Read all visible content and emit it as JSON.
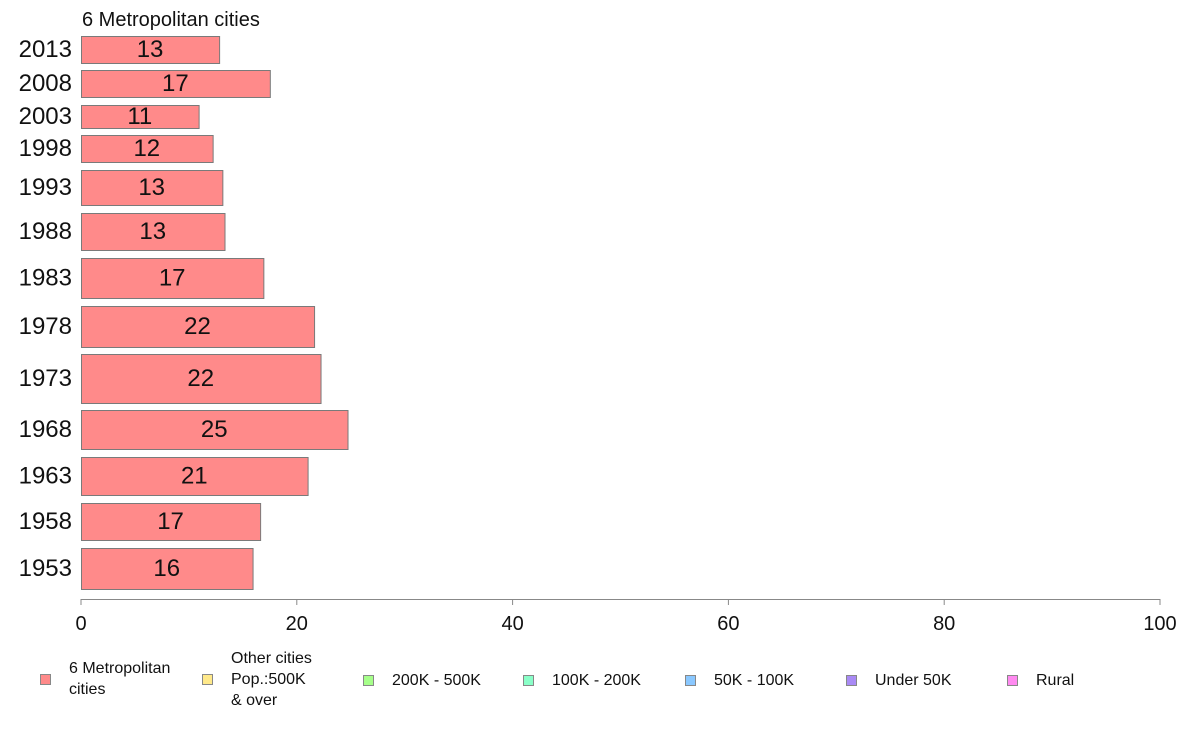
{
  "chart_data": {
    "type": "bar",
    "orientation": "horizontal",
    "title": "6 Metropolitan cities",
    "categories": [
      "2013",
      "2008",
      "2003",
      "1998",
      "1993",
      "1988",
      "1983",
      "1978",
      "1973",
      "1968",
      "1963",
      "1958",
      "1953"
    ],
    "series": [
      {
        "name": "6 Metropolitan\n cities",
        "color": "#ff8a8a",
        "values": [
          12.8,
          17.5,
          10.9,
          12.2,
          13.1,
          13.3,
          16.9,
          21.6,
          22.2,
          24.7,
          21.0,
          16.6,
          15.9
        ],
        "labels": [
          "13",
          "17",
          "11",
          "12",
          "13",
          "13",
          "17",
          "22",
          "22",
          "25",
          "21",
          "17",
          "16"
        ]
      }
    ],
    "xlim": [
      0,
      100
    ],
    "xticks": [
      "0",
      "20",
      "40",
      "60",
      "80",
      "100"
    ],
    "grid": false,
    "legend_position": "bottom"
  },
  "legend": [
    {
      "label": "6 Metropolitan\n cities",
      "color": "#ff8a8a"
    },
    {
      "label": "Other cities\nPop.:500K\n & over",
      "color": "#ffe98a"
    },
    {
      "label": "200K - 500K",
      "color": "#a6ff8a"
    },
    {
      "label": "100K - 200K",
      "color": "#8affc8"
    },
    {
      "label": "50K - 100K",
      "color": "#8ac8ff"
    },
    {
      "label": "Under 50K",
      "color": "#a98af5"
    },
    {
      "label": "Rural",
      "color": "#ff8af0"
    }
  ]
}
